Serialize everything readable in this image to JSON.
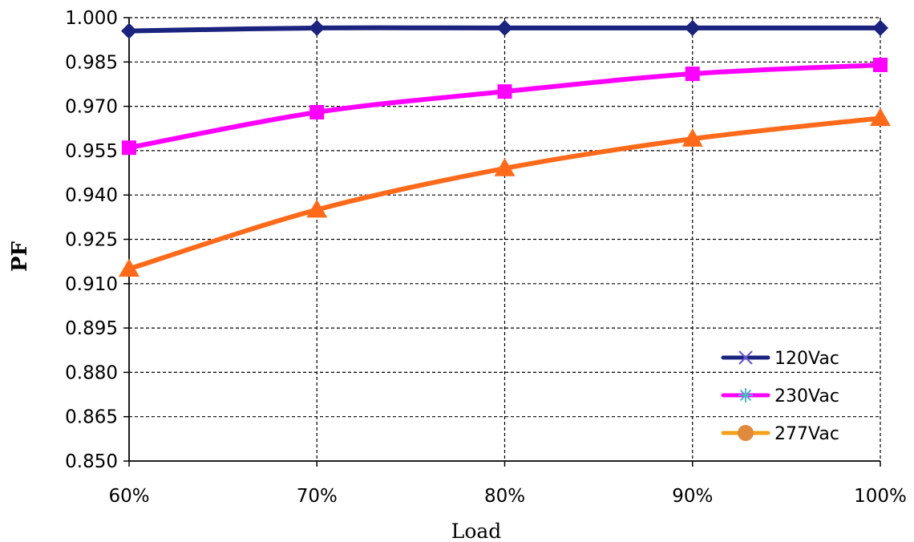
{
  "chart_data": {
    "type": "line",
    "title": "",
    "xlabel": "Load",
    "ylabel": "PF",
    "categories": [
      "60%",
      "70%",
      "80%",
      "90%",
      "100%"
    ],
    "ylim": [
      0.85,
      1.0
    ],
    "yticks": [
      "0.850",
      "0.865",
      "0.880",
      "0.895",
      "0.910",
      "0.925",
      "0.940",
      "0.955",
      "0.970",
      "0.985",
      "1.000"
    ],
    "grid": true,
    "legend_position": "bottom-right",
    "series": [
      {
        "name": "120Vac",
        "values": [
          0.9955,
          0.9965,
          0.9965,
          0.9965,
          0.9965
        ],
        "line_color": "#1a237e",
        "marker_color": "#1a237e",
        "marker": "diamond",
        "legend_marker": "x",
        "legend_marker_color": "#6a5acd"
      },
      {
        "name": "230Vac",
        "values": [
          0.956,
          0.968,
          0.975,
          0.981,
          0.984
        ],
        "line_color": "#ff00ff",
        "marker_color": "#ff00ff",
        "marker": "square",
        "legend_marker": "asterisk",
        "legend_marker_color": "#4fb3c8"
      },
      {
        "name": "277Vac",
        "values": [
          0.915,
          0.935,
          0.949,
          0.959,
          0.966
        ],
        "line_color": "#ff6a1a",
        "marker_color": "#ff6a1a",
        "marker": "triangle",
        "legend_marker": "circle",
        "legend_marker_color": "#e08a3c",
        "legend_line_color": "#f5a01a"
      }
    ]
  }
}
